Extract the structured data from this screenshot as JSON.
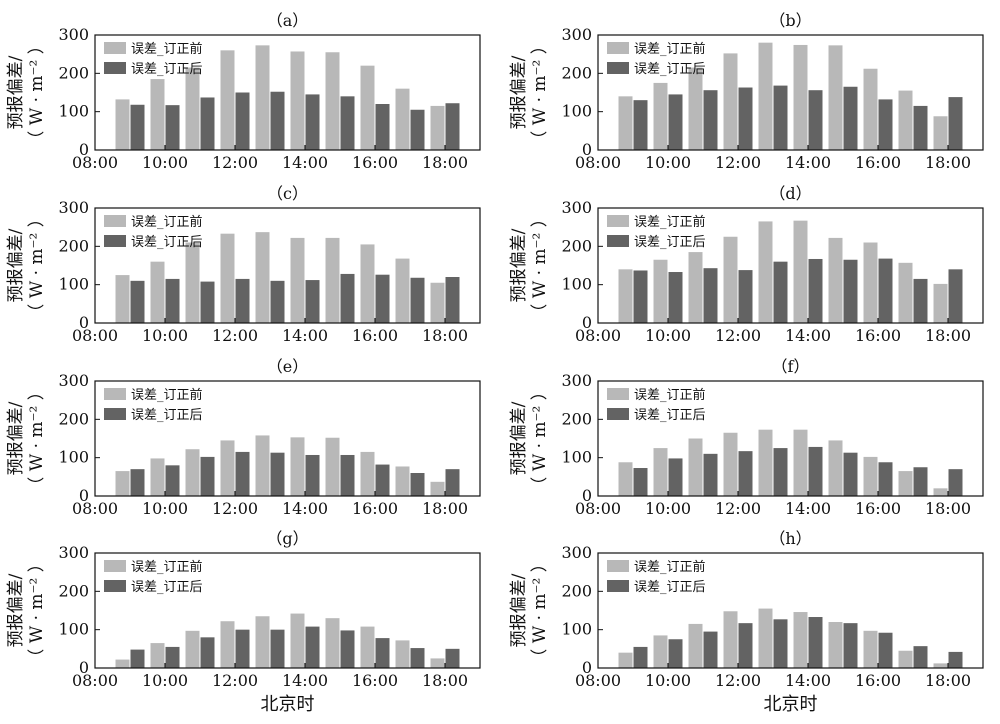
{
  "figure": {
    "xlabel": "北京时",
    "ylabel_line1": "预报偏差/",
    "ylabel_line2": "（ W · m⁻² ）",
    "legend": [
      "误差_订正前",
      "误差_订正后"
    ],
    "colors": {
      "before": "#b8b8b8",
      "after": "#636363"
    }
  },
  "chart_data": [
    {
      "type": "bar",
      "title": "（a）",
      "categories": [
        "09:00",
        "10:00",
        "11:00",
        "12:00",
        "13:00",
        "14:00",
        "15:00",
        "16:00",
        "17:00",
        "18:00"
      ],
      "x_ticks": [
        "08:00",
        "10:00",
        "12:00",
        "14:00",
        "16:00",
        "18:00"
      ],
      "ylim": [
        0,
        300
      ],
      "y_ticks": [
        0,
        100,
        200,
        300
      ],
      "series": [
        {
          "name": "误差_订正前",
          "values": [
            132,
            185,
            215,
            260,
            273,
            257,
            255,
            220,
            160,
            115
          ]
        },
        {
          "name": "误差_订正后",
          "values": [
            118,
            117,
            137,
            150,
            152,
            145,
            140,
            120,
            105,
            122
          ]
        }
      ]
    },
    {
      "type": "bar",
      "title": "（b）",
      "categories": [
        "09:00",
        "10:00",
        "11:00",
        "12:00",
        "13:00",
        "14:00",
        "15:00",
        "16:00",
        "17:00",
        "18:00"
      ],
      "x_ticks": [
        "08:00",
        "10:00",
        "12:00",
        "14:00",
        "16:00",
        "18:00"
      ],
      "ylim": [
        0,
        300
      ],
      "y_ticks": [
        0,
        100,
        200,
        300
      ],
      "series": [
        {
          "name": "误差_订正前",
          "values": [
            140,
            175,
            215,
            252,
            280,
            274,
            273,
            212,
            155,
            88
          ]
        },
        {
          "name": "误差_订正后",
          "values": [
            130,
            145,
            156,
            163,
            168,
            156,
            165,
            132,
            115,
            138
          ]
        }
      ]
    },
    {
      "type": "bar",
      "title": "（c）",
      "categories": [
        "09:00",
        "10:00",
        "11:00",
        "12:00",
        "13:00",
        "14:00",
        "15:00",
        "16:00",
        "17:00",
        "18:00"
      ],
      "x_ticks": [
        "08:00",
        "10:00",
        "12:00",
        "14:00",
        "16:00",
        "18:00"
      ],
      "ylim": [
        0,
        300
      ],
      "y_ticks": [
        0,
        100,
        200,
        300
      ],
      "series": [
        {
          "name": "误差_订正前",
          "values": [
            125,
            160,
            210,
            233,
            237,
            222,
            222,
            205,
            168,
            105
          ]
        },
        {
          "name": "误差_订正后",
          "values": [
            110,
            115,
            108,
            115,
            110,
            112,
            128,
            126,
            118,
            120
          ]
        }
      ]
    },
    {
      "type": "bar",
      "title": "（d）",
      "categories": [
        "09:00",
        "10:00",
        "11:00",
        "12:00",
        "13:00",
        "14:00",
        "15:00",
        "16:00",
        "17:00",
        "18:00"
      ],
      "x_ticks": [
        "08:00",
        "10:00",
        "12:00",
        "14:00",
        "16:00",
        "18:00"
      ],
      "ylim": [
        0,
        300
      ],
      "y_ticks": [
        0,
        100,
        200,
        300
      ],
      "series": [
        {
          "name": "误差_订正前",
          "values": [
            140,
            165,
            185,
            225,
            265,
            267,
            222,
            210,
            157,
            102
          ]
        },
        {
          "name": "误差_订正后",
          "values": [
            137,
            133,
            143,
            138,
            160,
            167,
            165,
            168,
            115,
            140
          ]
        }
      ]
    },
    {
      "type": "bar",
      "title": "（e）",
      "categories": [
        "09:00",
        "10:00",
        "11:00",
        "12:00",
        "13:00",
        "14:00",
        "15:00",
        "16:00",
        "17:00",
        "18:00"
      ],
      "x_ticks": [
        "08:00",
        "10:00",
        "12:00",
        "14:00",
        "16:00",
        "18:00"
      ],
      "ylim": [
        0,
        300
      ],
      "y_ticks": [
        0,
        100,
        200,
        300
      ],
      "series": [
        {
          "name": "误差_订正前",
          "values": [
            65,
            98,
            122,
            145,
            158,
            153,
            152,
            115,
            77,
            37
          ]
        },
        {
          "name": "误差_订正后",
          "values": [
            70,
            80,
            102,
            115,
            113,
            107,
            107,
            82,
            60,
            70
          ]
        }
      ]
    },
    {
      "type": "bar",
      "title": "（f）",
      "categories": [
        "09:00",
        "10:00",
        "11:00",
        "12:00",
        "13:00",
        "14:00",
        "15:00",
        "16:00",
        "17:00",
        "18:00"
      ],
      "x_ticks": [
        "08:00",
        "10:00",
        "12:00",
        "14:00",
        "16:00",
        "18:00"
      ],
      "ylim": [
        0,
        300
      ],
      "y_ticks": [
        0,
        100,
        200,
        300
      ],
      "series": [
        {
          "name": "误差_订正前",
          "values": [
            88,
            125,
            150,
            165,
            173,
            173,
            145,
            102,
            65,
            20
          ]
        },
        {
          "name": "误差_订正后",
          "values": [
            73,
            98,
            110,
            117,
            125,
            128,
            113,
            88,
            75,
            70
          ]
        }
      ]
    },
    {
      "type": "bar",
      "title": "（g）",
      "categories": [
        "09:00",
        "10:00",
        "11:00",
        "12:00",
        "13:00",
        "14:00",
        "15:00",
        "16:00",
        "17:00",
        "18:00"
      ],
      "x_ticks": [
        "08:00",
        "10:00",
        "12:00",
        "14:00",
        "16:00",
        "18:00"
      ],
      "ylim": [
        0,
        300
      ],
      "y_ticks": [
        0,
        100,
        200,
        300
      ],
      "series": [
        {
          "name": "误差_订正前",
          "values": [
            22,
            65,
            97,
            122,
            135,
            142,
            130,
            108,
            72,
            25
          ]
        },
        {
          "name": "误差_订正后",
          "values": [
            48,
            55,
            80,
            100,
            100,
            108,
            98,
            78,
            52,
            50
          ]
        }
      ]
    },
    {
      "type": "bar",
      "title": "（h）",
      "categories": [
        "09:00",
        "10:00",
        "11:00",
        "12:00",
        "13:00",
        "14:00",
        "15:00",
        "16:00",
        "17:00",
        "18:00"
      ],
      "x_ticks": [
        "08:00",
        "10:00",
        "12:00",
        "14:00",
        "16:00",
        "18:00"
      ],
      "ylim": [
        0,
        300
      ],
      "y_ticks": [
        0,
        100,
        200,
        300
      ],
      "series": [
        {
          "name": "误差_订正前",
          "values": [
            40,
            85,
            115,
            148,
            155,
            146,
            120,
            97,
            45,
            12
          ]
        },
        {
          "name": "误差_订正后",
          "values": [
            55,
            75,
            95,
            117,
            127,
            133,
            117,
            92,
            57,
            42
          ]
        }
      ]
    }
  ]
}
